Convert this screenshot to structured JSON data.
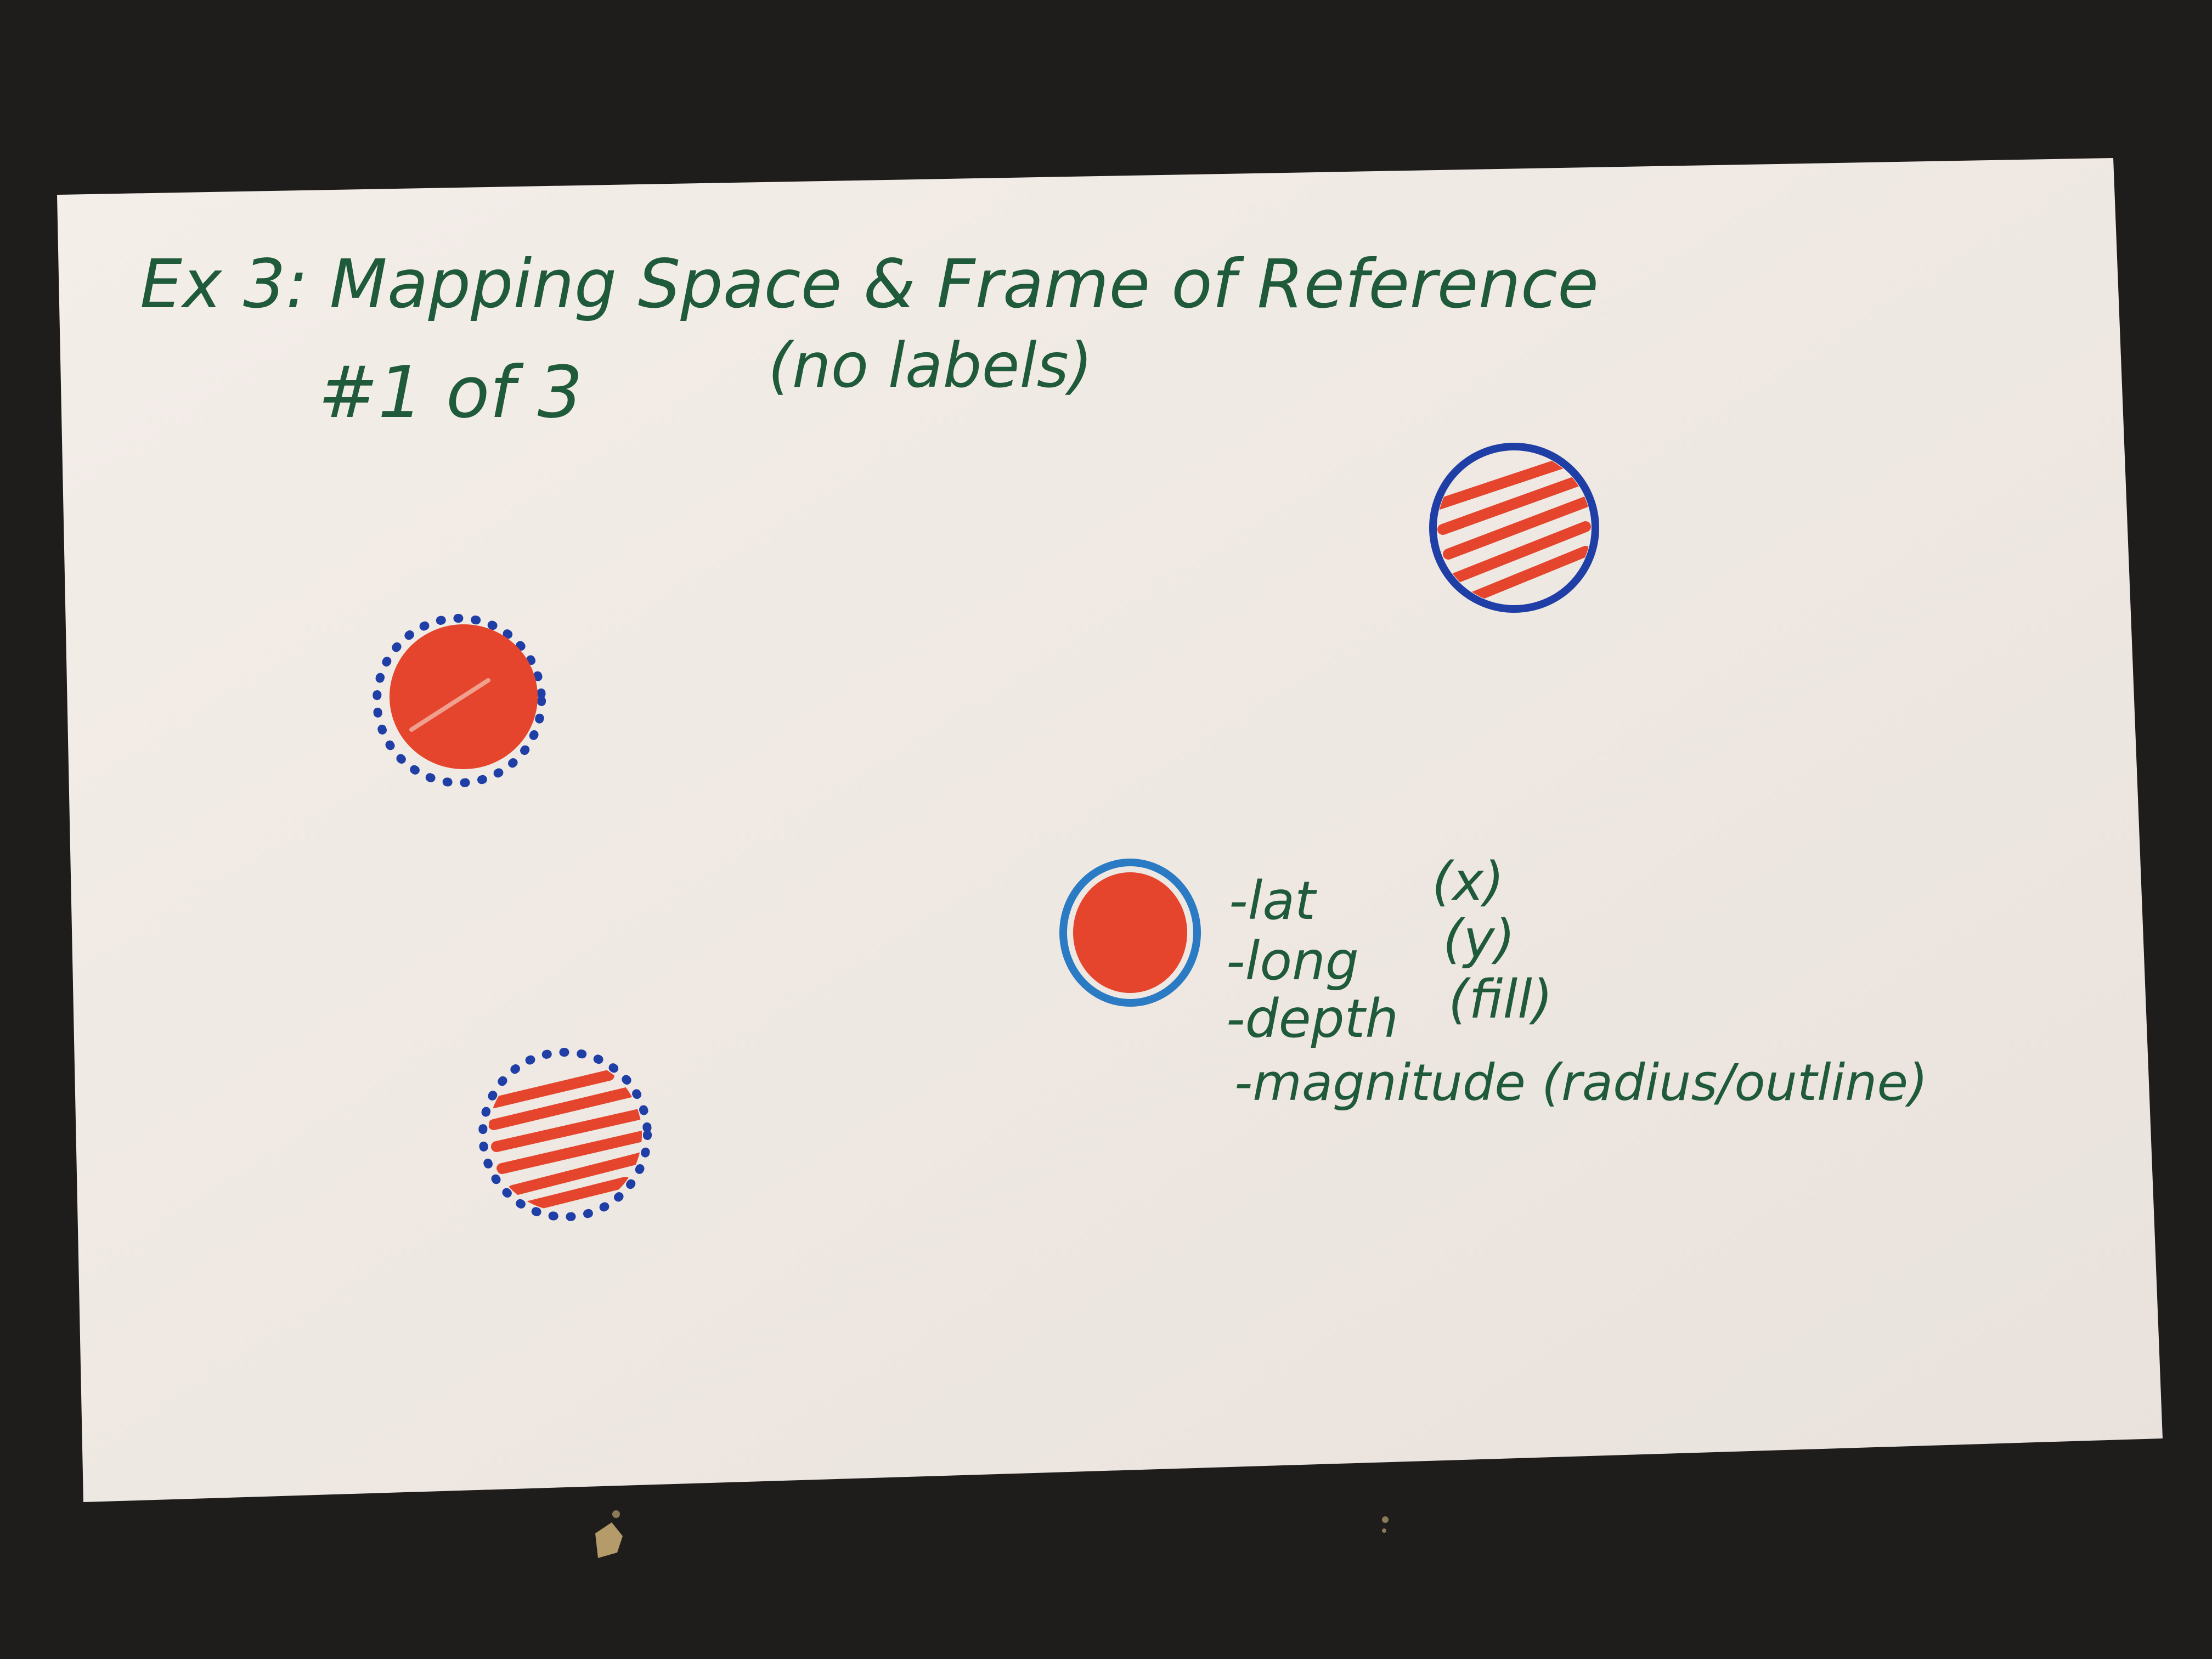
{
  "card": {
    "title_line_1": "Ex 3: Mapping Space & Frame of Reference",
    "title_line_2_number": "#1 of 3",
    "title_line_2_note": "(no labels)"
  },
  "legend": {
    "items": [
      {
        "label": "-lat",
        "encoding": "(x)"
      },
      {
        "label": "-long",
        "encoding": "(y)"
      },
      {
        "label": "-depth",
        "encoding": "(fill)"
      },
      {
        "label": "-magnitude (radius/outline)",
        "encoding": ""
      }
    ]
  },
  "colors": {
    "background": "#1f1c1c",
    "card": "#f1ebe6",
    "ink_green": "#1f5a3a",
    "marker_red": "#e5452d",
    "outline_blue": "#1f3fa6",
    "outline_light_blue": "#2a7ac4"
  },
  "marks": [
    {
      "name": "mark-top-right",
      "fill": "hatched",
      "outline": "solid"
    },
    {
      "name": "mark-left",
      "fill": "solid",
      "outline": "dotted"
    },
    {
      "name": "mark-center",
      "fill": "solid",
      "outline": "solid"
    },
    {
      "name": "mark-bottom-left",
      "fill": "hatched",
      "outline": "dotted"
    }
  ]
}
